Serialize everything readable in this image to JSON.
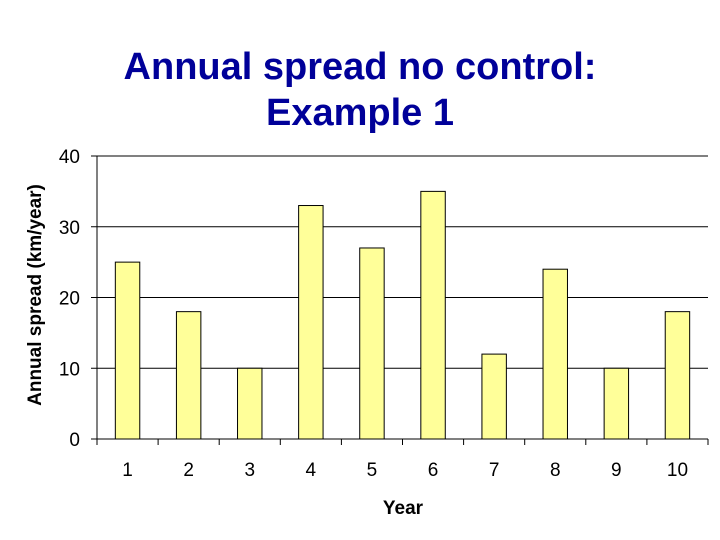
{
  "chart_data": {
    "type": "bar",
    "title_lines": [
      "Annual spread no control:",
      "Example 1"
    ],
    "xlabel": "Year",
    "ylabel": "Annual spread (km/year)",
    "categories": [
      "1",
      "2",
      "3",
      "4",
      "5",
      "6",
      "7",
      "8",
      "9",
      "10"
    ],
    "values": [
      25,
      18,
      10,
      33,
      27,
      35,
      12,
      24,
      10,
      18
    ],
    "ylim": [
      0,
      40
    ],
    "yticks": [
      "0",
      "10",
      "20",
      "30",
      "40"
    ],
    "grid": true,
    "legend": "none",
    "bar_color": "#ffff99",
    "bar_stroke": "#000000",
    "title_color": "#000099"
  }
}
